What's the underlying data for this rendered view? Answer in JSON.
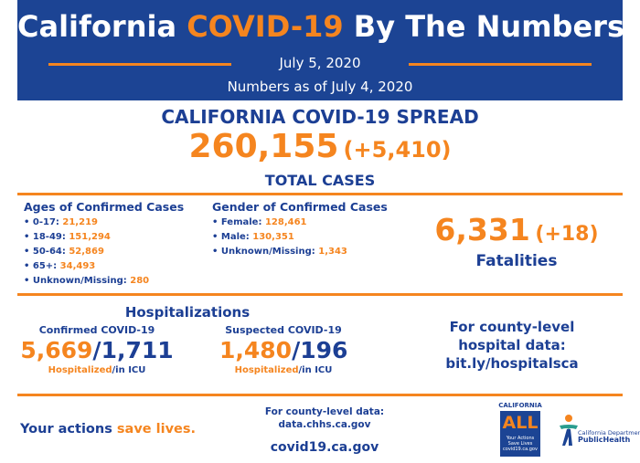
{
  "header": {
    "title_pre": "California ",
    "title_highlight": "COVID-19",
    "title_post": " By The Numbers",
    "date": "July 5, 2020",
    "as_of": "Numbers as of July 4, 2020"
  },
  "spread": {
    "title": "CALIFORNIA COVID-19 SPREAD",
    "total": "260,155",
    "change": "(+5,410)",
    "label": "TOTAL CASES"
  },
  "ages": {
    "title": "Ages of Confirmed Cases",
    "items": [
      {
        "label": "• 0-17: ",
        "value": "21,219"
      },
      {
        "label": "• 18-49: ",
        "value": "151,294"
      },
      {
        "label": "• 50-64: ",
        "value": "52,869"
      },
      {
        "label": "• 65+: ",
        "value": "34,493"
      },
      {
        "label": "• Unknown/Missing: ",
        "value": "280"
      }
    ]
  },
  "gender": {
    "title": "Gender of Confirmed Cases",
    "items": [
      {
        "label": "• Female: ",
        "value": "128,461"
      },
      {
        "label": "• Male: ",
        "value": "130,351"
      },
      {
        "label": "• Unknown/Missing: ",
        "value": "1,343"
      }
    ]
  },
  "fatalities": {
    "count": "6,331",
    "change": "(+18)",
    "label": "Fatalities"
  },
  "hospitalizations": {
    "title": "Hospitalizations",
    "confirmed": {
      "title": "Confirmed COVID-19",
      "hospitalized": "5,669",
      "icu": "1,711",
      "label_hosp": "Hospitalized",
      "label_icu": "/in ICU"
    },
    "suspected": {
      "title": "Suspected COVID-19",
      "hospitalized": "1,480",
      "icu": "196",
      "label_hosp": "Hospitalized",
      "label_icu": "/in ICU"
    },
    "county_line1": "For county-level",
    "county_line2": "hospital data:",
    "county_link": "bit.ly/hospitalsca"
  },
  "footer": {
    "tagline_pre": "Your actions ",
    "tagline_highlight": "save lives.",
    "county_data_label": "For county-level data:",
    "county_data_url": "data.chhs.ca.gov",
    "site_url": "covid19.ca.gov"
  },
  "logos": {
    "ca_word": "CALIFORNIA",
    "ca_all": "ALL",
    "ca_small1": "Your Actions",
    "ca_small2": "Save Lives",
    "ca_small3": "covid19.ca.gov",
    "cdph_line1": "California Department of",
    "cdph_line2": "PublicHealth"
  },
  "colors": {
    "navy": "#1c4494",
    "orange": "#f5851f"
  }
}
